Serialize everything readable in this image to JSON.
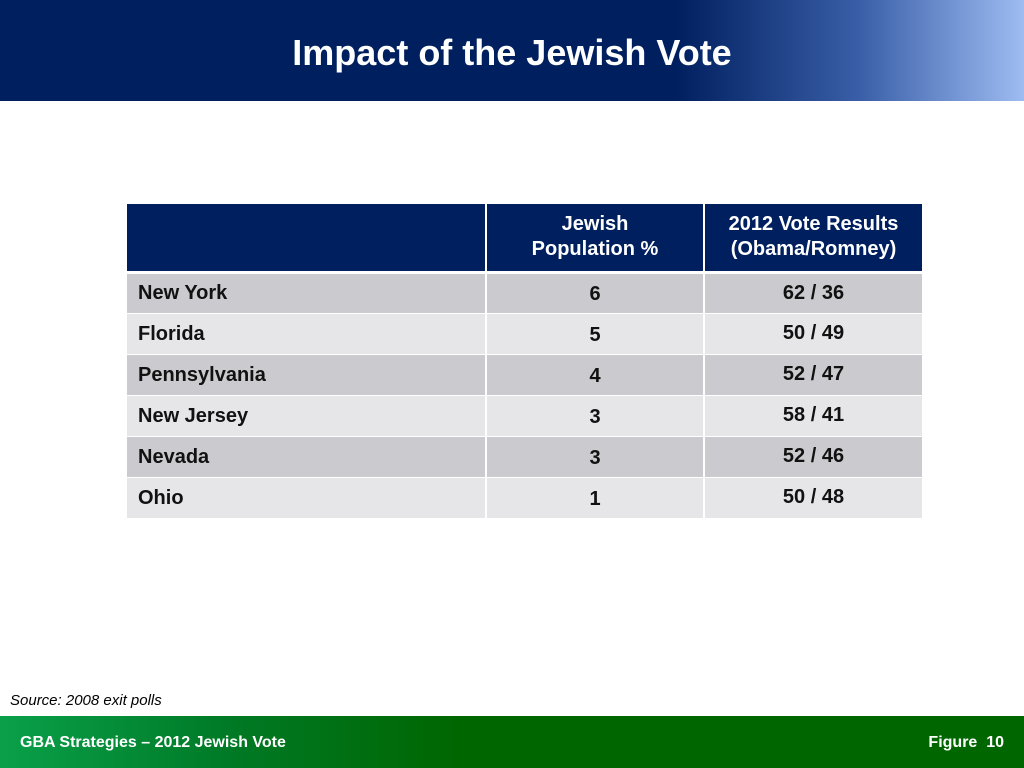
{
  "slide": {
    "title": "Impact of the Jewish Vote",
    "source": "Source: 2008 exit polls"
  },
  "table": {
    "headers": [
      "",
      "Jewish\nPopulation %",
      "2012 Vote Results\n(Obama/Romney)"
    ],
    "rows": [
      {
        "state": "New York",
        "population": "6",
        "results": "62 / 36"
      },
      {
        "state": "Florida",
        "population": "5",
        "results": "50 / 49"
      },
      {
        "state": "Pennsylvania",
        "population": "4",
        "results": "52 / 47"
      },
      {
        "state": "New Jersey",
        "population": "3",
        "results": "58 / 41"
      },
      {
        "state": "Nevada",
        "population": "3",
        "results": "52 / 46"
      },
      {
        "state": "Ohio",
        "population": "1",
        "results": "50 / 48"
      }
    ]
  },
  "footer": {
    "left": "GBA Strategies – 2012 Jewish Vote",
    "figure_label": "Figure",
    "figure_number": "10"
  },
  "colors": {
    "header_navy": "#001f5f",
    "header_light": "#9ebcf2",
    "row_dark": "#cbcbcf",
    "row_light": "#e6e6e8",
    "footer_green": "#006600"
  }
}
